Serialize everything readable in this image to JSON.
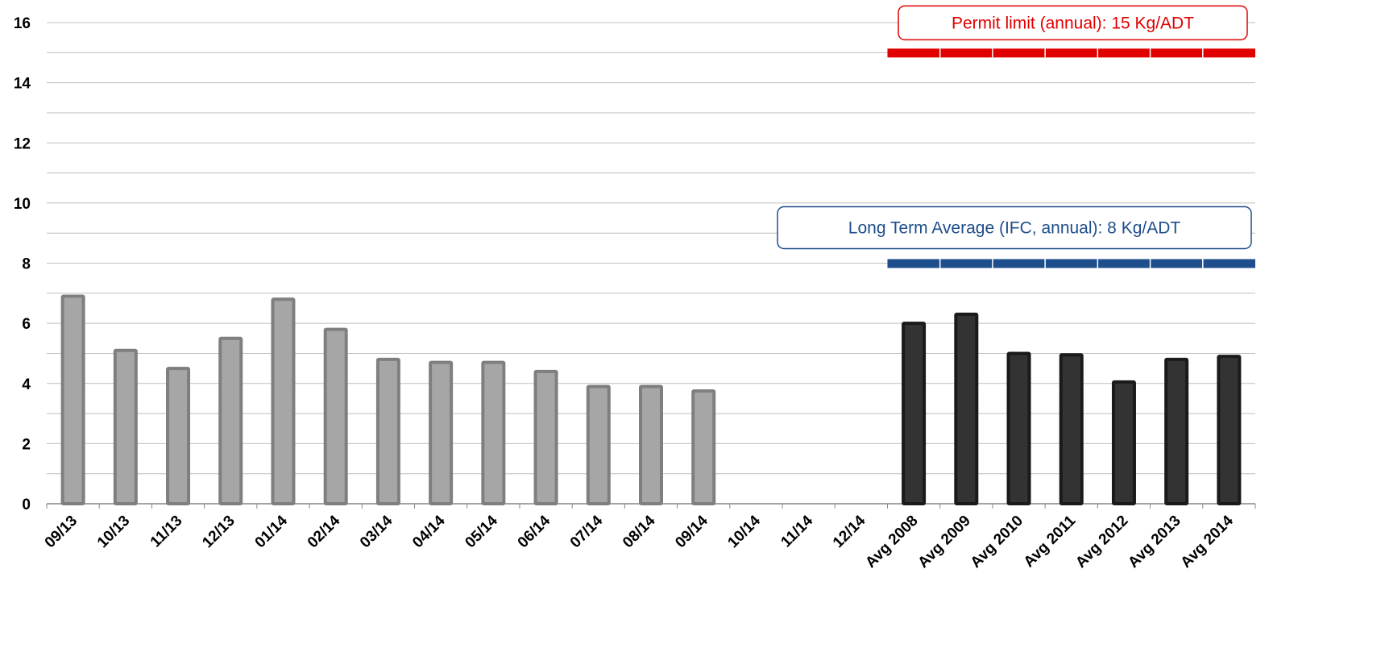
{
  "chart_data": {
    "type": "bar",
    "categories": [
      "09/13",
      "10/13",
      "11/13",
      "12/13",
      "01/14",
      "02/14",
      "03/14",
      "04/14",
      "05/14",
      "06/14",
      "07/14",
      "08/14",
      "09/14",
      "10/14",
      "11/14",
      "12/14",
      "Avg 2008",
      "Avg 2009",
      "Avg 2010",
      "Avg 2011",
      "Avg 2012",
      "Avg 2013",
      "Avg 2014"
    ],
    "series": [
      {
        "values": [
          6.9,
          5.1,
          4.5,
          5.5,
          6.8,
          5.8,
          4.8,
          4.7,
          4.7,
          4.4,
          3.9,
          3.9,
          3.75,
          null,
          null,
          null,
          null,
          null,
          null,
          null,
          null,
          null,
          null
        ],
        "color": "#a6a6a6",
        "stroke": "#7f7f7f"
      },
      {
        "values": [
          null,
          null,
          null,
          null,
          null,
          null,
          null,
          null,
          null,
          null,
          null,
          null,
          null,
          null,
          null,
          null,
          6.0,
          6.3,
          5.0,
          4.95,
          4.05,
          4.8,
          4.9
        ],
        "color": "#333333",
        "stroke": "#1a1a1a"
      }
    ],
    "reference_lines": [
      {
        "value": 15,
        "label": "Permit limit (annual): 15 Kg/ADT",
        "color": "#e00000",
        "from_category": "Avg 2008"
      },
      {
        "value": 8,
        "label": "Long Term Average (IFC, annual): 8 Kg/ADT",
        "color": "#1f4e8c",
        "from_category": "Avg 2008"
      }
    ],
    "yticks": [
      "0",
      "2",
      "4",
      "6",
      "8",
      "10",
      "12",
      "14",
      "16"
    ],
    "ylim": [
      0,
      16
    ],
    "grid": true,
    "minor_grid_step": 1
  }
}
